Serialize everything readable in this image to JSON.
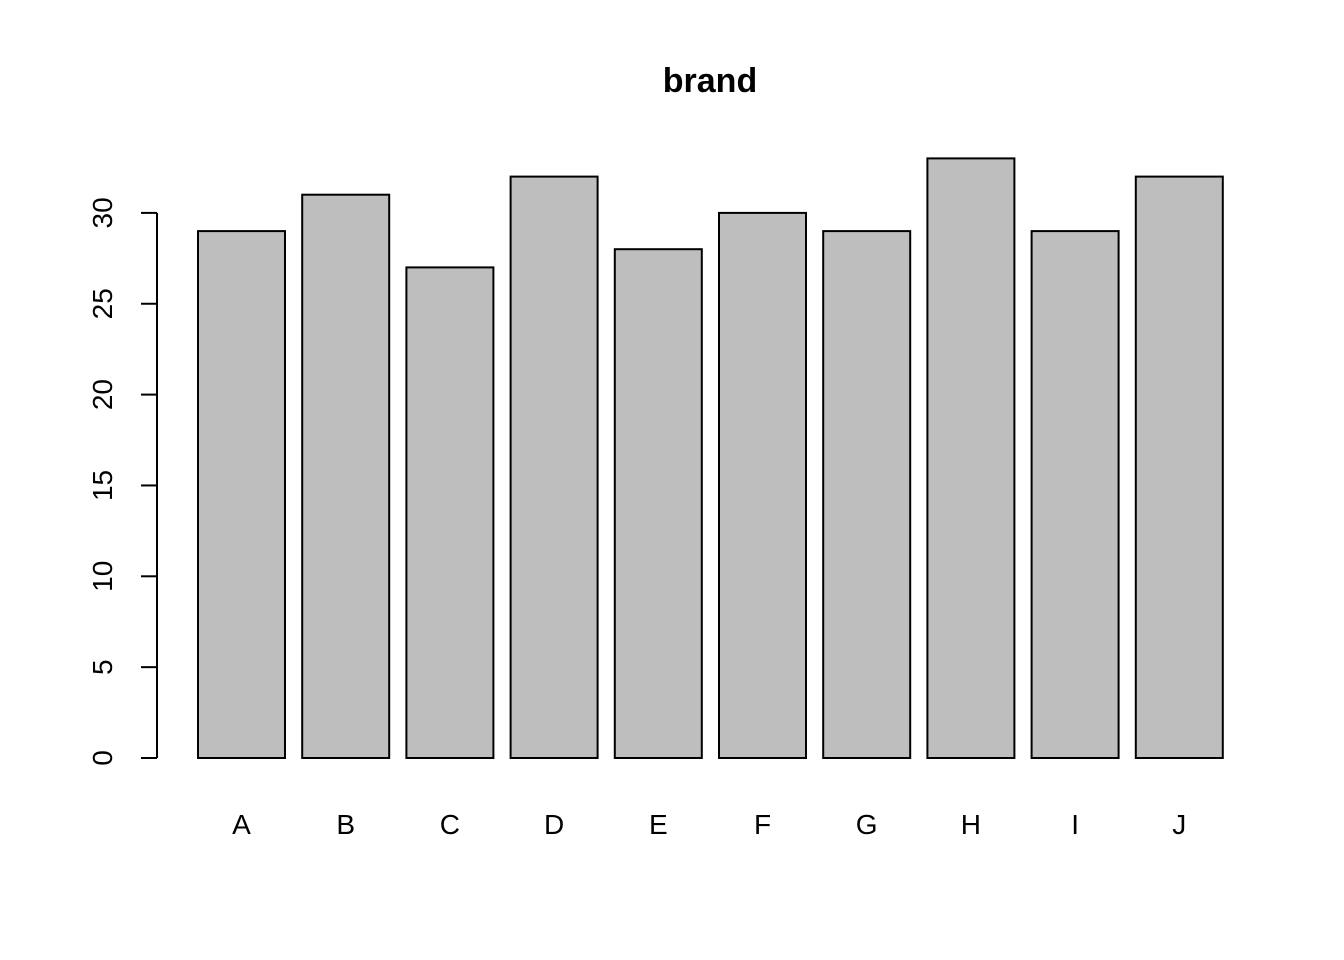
{
  "chart_data": {
    "type": "bar",
    "title": "brand",
    "xlabel": "",
    "ylabel": "",
    "categories": [
      "A",
      "B",
      "C",
      "D",
      "E",
      "F",
      "G",
      "H",
      "I",
      "J"
    ],
    "values": [
      29,
      31,
      27,
      32,
      28,
      30,
      29,
      33,
      29,
      32
    ],
    "ylim": [
      0,
      35
    ],
    "yticks": [
      0,
      5,
      10,
      15,
      20,
      25,
      30
    ],
    "ytick_labels": [
      "0",
      "5",
      "10",
      "15",
      "20",
      "25",
      "30"
    ],
    "bar_fill": "#bebebe",
    "bar_stroke": "#000000",
    "grid": false,
    "legend": "none"
  }
}
